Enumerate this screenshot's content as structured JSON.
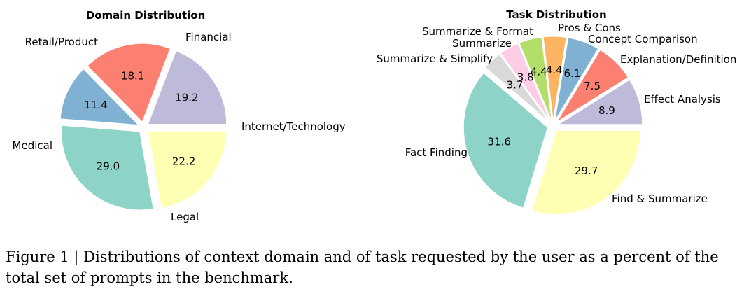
{
  "chart_data": [
    {
      "type": "pie",
      "title": "Domain Distribution",
      "labels": [
        "Internet/Technology",
        "Financial",
        "Retail/Product",
        "Medical",
        "Legal"
      ],
      "values": [
        19.2,
        18.1,
        11.4,
        29.0,
        22.2
      ],
      "colors": [
        "#bebada",
        "#fb8072",
        "#80b1d3",
        "#8dd3c7",
        "#ffffb3"
      ],
      "legend": "none"
    },
    {
      "type": "pie",
      "title": "Task Distribution",
      "labels": [
        "Effect Analysis",
        "Explanation/Definition",
        "Concept Comparison",
        "Pros & Cons",
        "Summarize & Format",
        "Summarize",
        "Summarize & Simplify",
        "Fact Finding",
        "Find & Summarize"
      ],
      "values": [
        8.9,
        7.5,
        6.1,
        4.4,
        4.4,
        3.8,
        3.7,
        31.6,
        29.7
      ],
      "colors": [
        "#bebada",
        "#fb8072",
        "#80b1d3",
        "#fdb462",
        "#b3de69",
        "#fccde5",
        "#d9d9d9",
        "#8dd3c7",
        "#ffffb3"
      ],
      "legend": "none"
    }
  ],
  "caption": "Figure 1 | Distributions of context domain and of task requested by the user as a percent of the total set of prompts in the benchmark."
}
